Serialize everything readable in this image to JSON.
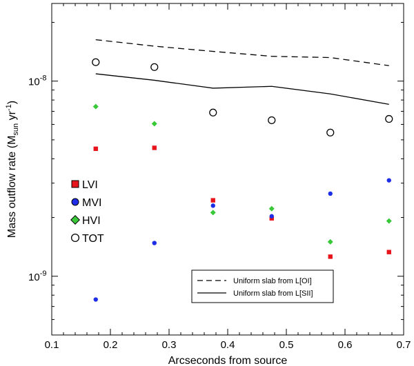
{
  "chart_data": {
    "type": "scatter",
    "title": "",
    "xlabel": "Arcseconds from source",
    "ylabel_main": "Mass outflow rate (M",
    "ylabel_sub": "sun",
    "ylabel_mid": " yr",
    "ylabel_sup": "-1",
    "ylabel_end": ")",
    "xlim": [
      0.1,
      0.7
    ],
    "ylim": [
      5e-10,
      2.5e-08
    ],
    "yscale": "log",
    "x_ticks": [
      0.1,
      0.2,
      0.3,
      0.4,
      0.5,
      0.6,
      0.7
    ],
    "x_tick_labels": [
      "0.1",
      "0.2",
      "0.3",
      "0.4",
      "0.5",
      "0.6",
      "0.7"
    ],
    "y_major_ticks": [
      {
        "value": 1e-09,
        "base": "10",
        "exp": "-9"
      },
      {
        "value": 1e-08,
        "base": "10",
        "exp": "-8"
      }
    ],
    "x": [
      0.175,
      0.275,
      0.375,
      0.475,
      0.575,
      0.675
    ],
    "series": [
      {
        "name": "LVI",
        "marker": "square",
        "color": "#e8141c",
        "values": [
          4.5e-09,
          4.55e-09,
          2.45e-09,
          1.98e-09,
          1.26e-09,
          1.33e-09
        ]
      },
      {
        "name": "MVI",
        "marker": "circle",
        "color": "#1e2ee6",
        "values": [
          7.6e-10,
          1.48e-09,
          2.3e-09,
          2.03e-09,
          2.65e-09,
          3.1e-09
        ]
      },
      {
        "name": "HVI",
        "marker": "diamond",
        "color": "#38c838",
        "values": [
          7.4e-09,
          6.05e-09,
          2.12e-09,
          2.22e-09,
          1.5e-09,
          1.92e-09
        ]
      },
      {
        "name": "TOT",
        "marker": "open-circle",
        "color": "#000000",
        "values": [
          1.25e-08,
          1.18e-08,
          6.9e-09,
          6.3e-09,
          5.45e-09,
          6.4e-09
        ]
      }
    ],
    "lines": [
      {
        "name": "Uniform slab from L[OI]",
        "style": "dashed",
        "values": [
          1.63e-08,
          1.51e-08,
          1.42e-08,
          1.34e-08,
          1.32e-08,
          1.2e-08
        ]
      },
      {
        "name": "Uniform slab from L[SII]",
        "style": "solid",
        "values": [
          1.09e-08,
          1.01e-08,
          9.2e-09,
          9.4e-09,
          8.6e-09,
          7.6e-09
        ]
      }
    ],
    "legend_markers": [
      "LVI",
      "MVI",
      "HVI",
      "TOT"
    ],
    "legend_markers_position": "center-left",
    "legend_lines": [
      "Uniform slab from L[OI]",
      "Uniform slab from L[SII]"
    ],
    "legend_lines_position": "bottom-right"
  }
}
